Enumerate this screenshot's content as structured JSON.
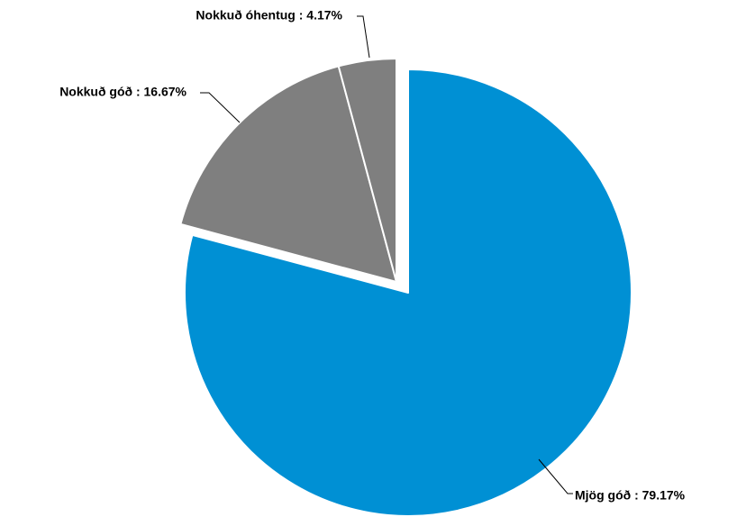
{
  "chart_data": {
    "type": "pie",
    "values": [
      79.17,
      16.67,
      4.17
    ],
    "value_labels": [
      "Mjög góð : 79.17%",
      "Nokkuð góð : 16.67%",
      "Nokkuð óhentug : 4.17%"
    ],
    "colors": [
      "#0090d4",
      "#7f7f7f",
      "#7f7f7f"
    ]
  }
}
